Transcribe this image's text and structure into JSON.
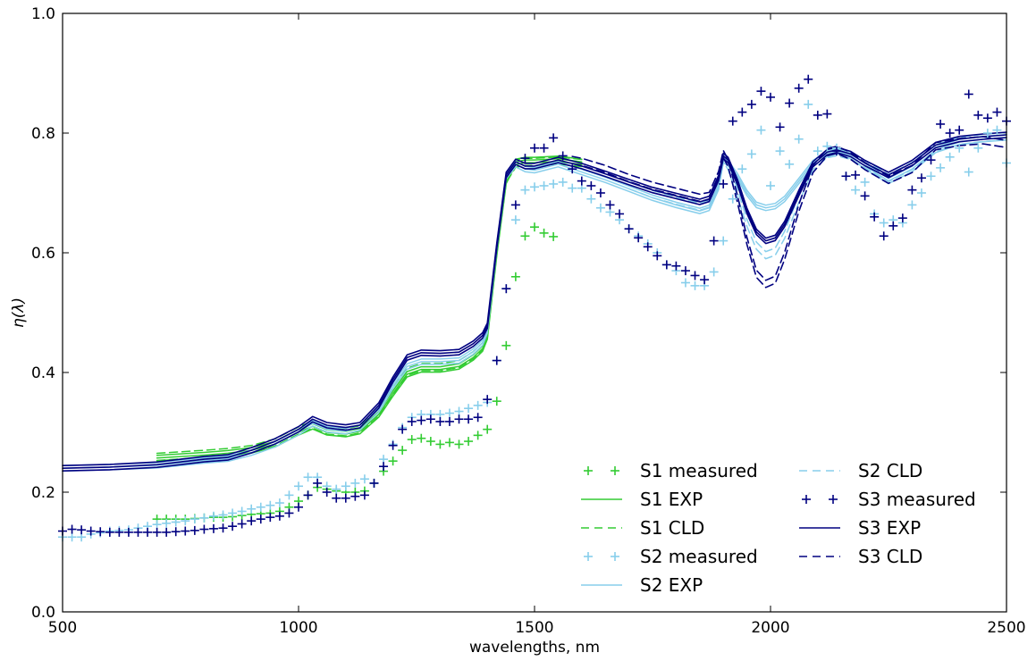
{
  "chart_data": {
    "type": "line",
    "title": "",
    "xlabel": "wavelengths, nm",
    "ylabel": "η(λ)",
    "xlim": [
      500,
      2500
    ],
    "ylim": [
      0.0,
      1.0
    ],
    "xticks": [
      "500",
      "1000",
      "1500",
      "2000",
      "2500"
    ],
    "yticks": [
      "0.0",
      "0.2",
      "0.4",
      "0.6",
      "0.8",
      "1.0"
    ],
    "grid": false,
    "legend_placement": "lower-right",
    "colors": {
      "S1": "#33cc33",
      "S2": "#87ceeb",
      "S3": "#000080"
    },
    "series": [
      {
        "name": "S1 measured",
        "sample": "S1",
        "kind": "measured",
        "x": [
          700,
          720,
          740,
          760,
          780,
          800,
          820,
          840,
          860,
          880,
          900,
          920,
          940,
          960,
          980,
          1000,
          1020,
          1040,
          1060,
          1080,
          1100,
          1120,
          1140,
          1160,
          1180,
          1200,
          1220,
          1240,
          1260,
          1280,
          1300,
          1320,
          1340,
          1360,
          1380,
          1400,
          1420,
          1440,
          1460,
          1480,
          1500,
          1520,
          1540
        ],
        "y": [
          0.155,
          0.155,
          0.155,
          0.155,
          0.156,
          0.157,
          0.158,
          0.158,
          0.159,
          0.161,
          0.163,
          0.164,
          0.165,
          0.168,
          0.175,
          0.185,
          0.195,
          0.208,
          0.205,
          0.202,
          0.2,
          0.2,
          0.202,
          0.215,
          0.235,
          0.252,
          0.27,
          0.288,
          0.29,
          0.285,
          0.28,
          0.283,
          0.28,
          0.285,
          0.295,
          0.305,
          0.352,
          0.445,
          0.56,
          0.628,
          0.643,
          0.633,
          0.627
        ]
      },
      {
        "name": "S1 EXP",
        "sample": "S1",
        "kind": "exp",
        "x": [
          700,
          800,
          850,
          900,
          950,
          1000,
          1030,
          1060,
          1100,
          1130,
          1170,
          1200,
          1230,
          1260,
          1300,
          1340,
          1370,
          1390,
          1400,
          1420,
          1440,
          1460,
          1480,
          1500,
          1550,
          1600
        ],
        "y": [
          0.257,
          0.262,
          0.265,
          0.27,
          0.28,
          0.3,
          0.31,
          0.3,
          0.297,
          0.302,
          0.33,
          0.365,
          0.397,
          0.405,
          0.405,
          0.41,
          0.425,
          0.44,
          0.46,
          0.6,
          0.72,
          0.752,
          0.755,
          0.755,
          0.757,
          0.752
        ]
      },
      {
        "name": "S1 CLD",
        "sample": "S1",
        "kind": "cld",
        "x": [
          700,
          800,
          850,
          900,
          950,
          1000,
          1030,
          1060,
          1100,
          1130,
          1170,
          1200,
          1230,
          1260,
          1300,
          1340,
          1370,
          1390,
          1400,
          1420,
          1440,
          1460,
          1480,
          1500,
          1550,
          1600
        ],
        "y": [
          0.259,
          0.264,
          0.267,
          0.272,
          0.283,
          0.303,
          0.313,
          0.303,
          0.3,
          0.305,
          0.333,
          0.368,
          0.401,
          0.409,
          0.409,
          0.414,
          0.429,
          0.444,
          0.464,
          0.605,
          0.723,
          0.749,
          0.752,
          0.752,
          0.754,
          0.75
        ]
      },
      {
        "name": "S2 measured",
        "sample": "S2",
        "kind": "measured",
        "x": [
          500,
          520,
          540,
          560,
          580,
          600,
          620,
          640,
          660,
          680,
          700,
          720,
          740,
          760,
          780,
          800,
          820,
          840,
          860,
          880,
          900,
          920,
          940,
          960,
          980,
          1000,
          1020,
          1040,
          1060,
          1080,
          1100,
          1120,
          1140,
          1160,
          1180,
          1200,
          1220,
          1240,
          1260,
          1280,
          1300,
          1320,
          1340,
          1360,
          1380,
          1400,
          1420,
          1440,
          1460,
          1480,
          1500,
          1520,
          1540,
          1560,
          1580,
          1600,
          1620,
          1640,
          1660,
          1680,
          1700,
          1720,
          1740,
          1760,
          1780,
          1800,
          1820,
          1840,
          1860,
          1880,
          1900,
          1920,
          1940,
          1960,
          1980,
          2000,
          2020,
          2040,
          2060,
          2080,
          2100,
          2120,
          2140,
          2160,
          2180,
          2200,
          2220,
          2240,
          2260,
          2280,
          2300,
          2320,
          2340,
          2360,
          2380,
          2400,
          2420,
          2440,
          2460,
          2480,
          2500
        ],
        "y": [
          0.125,
          0.125,
          0.125,
          0.13,
          0.132,
          0.135,
          0.136,
          0.137,
          0.14,
          0.143,
          0.146,
          0.148,
          0.15,
          0.152,
          0.155,
          0.157,
          0.16,
          0.162,
          0.165,
          0.168,
          0.172,
          0.175,
          0.178,
          0.182,
          0.195,
          0.21,
          0.225,
          0.225,
          0.21,
          0.205,
          0.21,
          0.215,
          0.222,
          0.215,
          0.255,
          0.28,
          0.308,
          0.325,
          0.33,
          0.33,
          0.33,
          0.332,
          0.335,
          0.34,
          0.345,
          0.35,
          0.42,
          0.54,
          0.655,
          0.705,
          0.71,
          0.712,
          0.715,
          0.718,
          0.708,
          0.708,
          0.69,
          0.675,
          0.668,
          0.655,
          0.64,
          0.628,
          0.615,
          0.6,
          0.58,
          0.57,
          0.55,
          0.545,
          0.545,
          0.568,
          0.62,
          0.69,
          0.74,
          0.765,
          0.805,
          0.712,
          0.77,
          0.748,
          0.79,
          0.848,
          0.77,
          0.778,
          0.775,
          0.728,
          0.705,
          0.718,
          0.665,
          0.65,
          0.655,
          0.65,
          0.68,
          0.7,
          0.728,
          0.742,
          0.76,
          0.775,
          0.735,
          0.775,
          0.8,
          0.805,
          0.75
        ]
      },
      {
        "name": "S2 EXP",
        "sample": "S2",
        "kind": "exp",
        "x": [
          500,
          600,
          700,
          800,
          850,
          900,
          950,
          1000,
          1030,
          1060,
          1100,
          1130,
          1170,
          1200,
          1230,
          1260,
          1300,
          1340,
          1370,
          1390,
          1400,
          1420,
          1440,
          1460,
          1480,
          1500,
          1550,
          1600,
          1650,
          1700,
          1750,
          1800,
          1850,
          1870,
          1890,
          1900,
          1910,
          1930,
          1950,
          1970,
          1990,
          2010,
          2030,
          2060,
          2090,
          2120,
          2140,
          2170,
          2200,
          2250,
          2300,
          2350,
          2400,
          2450,
          2500
        ],
        "y": [
          0.24,
          0.242,
          0.245,
          0.253,
          0.256,
          0.266,
          0.28,
          0.3,
          0.315,
          0.305,
          0.302,
          0.308,
          0.338,
          0.378,
          0.41,
          0.418,
          0.418,
          0.42,
          0.435,
          0.45,
          0.47,
          0.61,
          0.728,
          0.748,
          0.74,
          0.738,
          0.748,
          0.735,
          0.722,
          0.707,
          0.692,
          0.68,
          0.67,
          0.675,
          0.71,
          0.755,
          0.75,
          0.728,
          0.7,
          0.68,
          0.675,
          0.678,
          0.69,
          0.72,
          0.75,
          0.765,
          0.77,
          0.762,
          0.745,
          0.72,
          0.74,
          0.772,
          0.785,
          0.79,
          0.793
        ]
      },
      {
        "name": "S2 CLD",
        "sample": "S2",
        "kind": "cld",
        "x": [
          1700,
          1750,
          1800,
          1850,
          1870,
          1890,
          1900,
          1910,
          1930,
          1950,
          1970,
          1990,
          2010,
          2030,
          2060,
          2090,
          2120,
          2140,
          2170,
          2200,
          2250,
          2300,
          2350,
          2400,
          2450,
          2500
        ],
        "y": [
          0.713,
          0.698,
          0.687,
          0.677,
          0.682,
          0.715,
          0.758,
          0.745,
          0.7,
          0.65,
          0.612,
          0.596,
          0.602,
          0.63,
          0.69,
          0.745,
          0.765,
          0.768,
          0.762,
          0.748,
          0.725,
          0.745,
          0.775,
          0.787,
          0.792,
          0.795
        ]
      },
      {
        "name": "S3 measured",
        "sample": "S3",
        "kind": "measured",
        "x": [
          500,
          520,
          540,
          560,
          580,
          600,
          620,
          640,
          660,
          680,
          700,
          720,
          740,
          760,
          780,
          800,
          820,
          840,
          860,
          880,
          900,
          920,
          940,
          960,
          980,
          1000,
          1020,
          1040,
          1060,
          1080,
          1100,
          1120,
          1140,
          1160,
          1180,
          1200,
          1220,
          1240,
          1260,
          1280,
          1300,
          1320,
          1340,
          1360,
          1380,
          1400,
          1420,
          1440,
          1460,
          1480,
          1500,
          1520,
          1540,
          1560,
          1580,
          1600,
          1620,
          1640,
          1660,
          1680,
          1700,
          1720,
          1740,
          1760,
          1780,
          1800,
          1820,
          1840,
          1860,
          1880,
          1900,
          1920,
          1940,
          1960,
          1980,
          2000,
          2020,
          2040,
          2060,
          2080,
          2100,
          2120,
          2140,
          2160,
          2180,
          2200,
          2220,
          2240,
          2260,
          2280,
          2300,
          2320,
          2340,
          2360,
          2380,
          2400,
          2420,
          2440,
          2460,
          2480,
          2500
        ],
        "y": [
          0.135,
          0.138,
          0.137,
          0.135,
          0.134,
          0.133,
          0.133,
          0.133,
          0.133,
          0.133,
          0.133,
          0.133,
          0.134,
          0.135,
          0.136,
          0.138,
          0.139,
          0.14,
          0.143,
          0.147,
          0.152,
          0.155,
          0.158,
          0.16,
          0.165,
          0.175,
          0.195,
          0.215,
          0.2,
          0.19,
          0.19,
          0.193,
          0.195,
          0.215,
          0.243,
          0.278,
          0.305,
          0.318,
          0.32,
          0.322,
          0.318,
          0.318,
          0.322,
          0.322,
          0.325,
          0.355,
          0.42,
          0.54,
          0.68,
          0.758,
          0.775,
          0.775,
          0.792,
          0.762,
          0.74,
          0.72,
          0.712,
          0.7,
          0.68,
          0.665,
          0.64,
          0.625,
          0.61,
          0.595,
          0.58,
          0.578,
          0.57,
          0.562,
          0.555,
          0.62,
          0.715,
          0.82,
          0.835,
          0.848,
          0.87,
          0.86,
          0.81,
          0.85,
          0.875,
          0.89,
          0.83,
          0.832,
          0.77,
          0.728,
          0.73,
          0.695,
          0.66,
          0.628,
          0.645,
          0.658,
          0.705,
          0.725,
          0.755,
          0.815,
          0.8,
          0.805,
          0.865,
          0.83,
          0.825,
          0.835,
          0.82
        ]
      },
      {
        "name": "S3 EXP",
        "sample": "S3",
        "kind": "exp",
        "x": [
          500,
          600,
          700,
          800,
          850,
          900,
          950,
          1000,
          1030,
          1060,
          1100,
          1130,
          1170,
          1200,
          1230,
          1260,
          1300,
          1340,
          1370,
          1390,
          1400,
          1420,
          1440,
          1460,
          1480,
          1500,
          1550,
          1600,
          1650,
          1700,
          1750,
          1800,
          1850,
          1870,
          1890,
          1900,
          1910,
          1930,
          1950,
          1970,
          1990,
          2010,
          2030,
          2060,
          2090,
          2120,
          2140,
          2170,
          2200,
          2250,
          2300,
          2350,
          2400,
          2450,
          2500
        ],
        "y": [
          0.24,
          0.242,
          0.246,
          0.255,
          0.258,
          0.27,
          0.285,
          0.305,
          0.322,
          0.312,
          0.308,
          0.312,
          0.345,
          0.388,
          0.425,
          0.433,
          0.432,
          0.434,
          0.448,
          0.462,
          0.478,
          0.612,
          0.73,
          0.752,
          0.745,
          0.745,
          0.755,
          0.745,
          0.732,
          0.718,
          0.705,
          0.695,
          0.685,
          0.69,
          0.725,
          0.762,
          0.755,
          0.718,
          0.67,
          0.635,
          0.62,
          0.625,
          0.648,
          0.7,
          0.748,
          0.768,
          0.772,
          0.765,
          0.75,
          0.73,
          0.75,
          0.78,
          0.79,
          0.794,
          0.797
        ]
      },
      {
        "name": "S3 CLD",
        "sample": "S3",
        "kind": "cld",
        "x": [
          1580,
          1600,
          1650,
          1700,
          1750,
          1800,
          1850,
          1870,
          1890,
          1900,
          1910,
          1930,
          1950,
          1970,
          1990,
          2010,
          2030,
          2060,
          2090,
          2120,
          2140,
          2170,
          2200,
          2250,
          2300,
          2350,
          2400,
          2450,
          2500
        ],
        "y": [
          0.755,
          0.752,
          0.74,
          0.725,
          0.712,
          0.702,
          0.692,
          0.695,
          0.73,
          0.765,
          0.75,
          0.69,
          0.62,
          0.565,
          0.548,
          0.555,
          0.595,
          0.675,
          0.74,
          0.768,
          0.772,
          0.762,
          0.745,
          0.722,
          0.74,
          0.778,
          0.785,
          0.788,
          0.782
        ]
      }
    ]
  }
}
